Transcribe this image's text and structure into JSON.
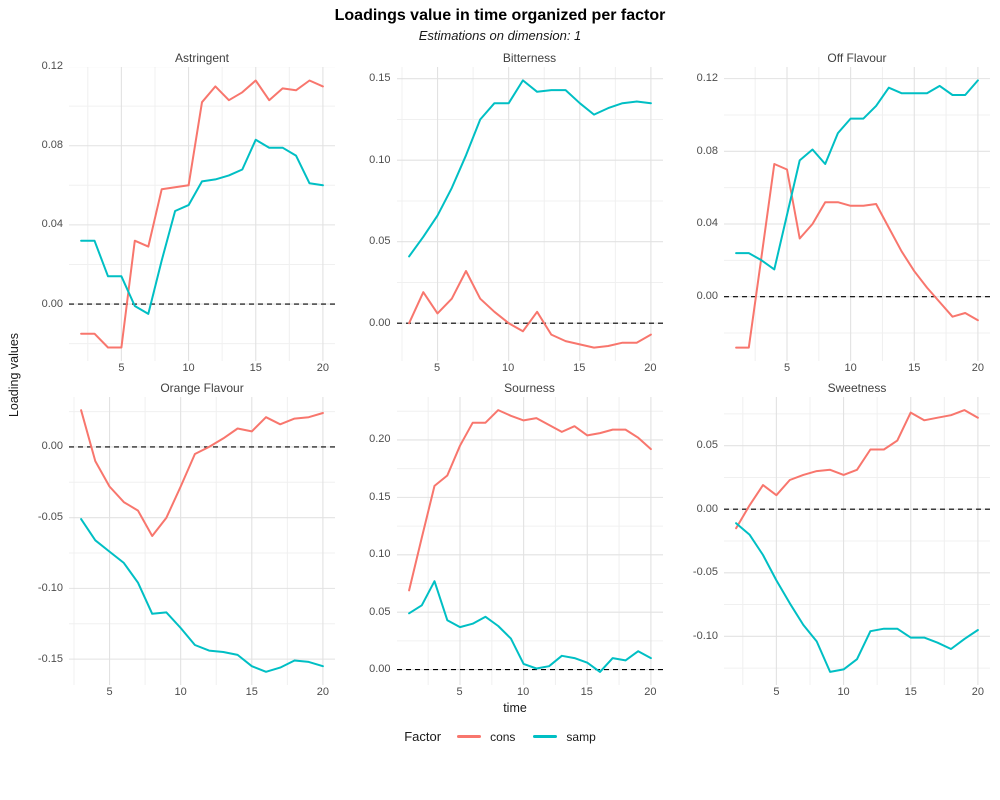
{
  "header": {
    "title": "Loadings value in time organized per factor",
    "subtitle": "Estimations on dimension: 1"
  },
  "axes": {
    "x_label": "time",
    "y_label": "Loading values"
  },
  "legend": {
    "title": "Factor",
    "items": [
      {
        "label": "cons",
        "color": "#F8766D"
      },
      {
        "label": "samp",
        "color": "#00BFC4"
      }
    ]
  },
  "style": {
    "cons_color": "#F8766D",
    "samp_color": "#00BFC4",
    "grid_major": "#E2E2E2",
    "grid_minor": "#F0F0F0",
    "zero_line_color": "#000000"
  },
  "chart_data": [
    {
      "type": "line",
      "title": "Astringent",
      "x": [
        2,
        3,
        4,
        5,
        6,
        7,
        8,
        9,
        10,
        11,
        12,
        13,
        14,
        15,
        16,
        17,
        18,
        19,
        20
      ],
      "series": [
        {
          "name": "cons",
          "values": [
            -0.015,
            -0.015,
            -0.022,
            -0.022,
            0.032,
            0.029,
            0.058,
            0.059,
            0.06,
            0.102,
            0.11,
            0.103,
            0.107,
            0.113,
            0.103,
            0.109,
            0.108,
            0.113,
            0.11
          ]
        },
        {
          "name": "samp",
          "values": [
            0.032,
            0.032,
            0.014,
            0.014,
            -0.001,
            -0.005,
            0.022,
            0.047,
            0.05,
            0.062,
            0.063,
            0.065,
            0.068,
            0.083,
            0.079,
            0.079,
            0.075,
            0.061,
            0.06
          ]
        }
      ],
      "yticks": [
        0.0,
        0.04,
        0.08,
        0.12
      ],
      "xticks": [
        5,
        10,
        15,
        20
      ],
      "xlim": [
        1.1,
        20.9
      ],
      "ylim": [
        -0.0288,
        0.1198
      ],
      "zero_line": true
    },
    {
      "type": "line",
      "title": "Bitterness",
      "x": [
        3,
        4,
        5,
        6,
        7,
        8,
        9,
        10,
        11,
        12,
        13,
        14,
        15,
        16,
        17,
        18,
        19,
        20
      ],
      "series": [
        {
          "name": "cons",
          "values": [
            0.0,
            0.019,
            0.006,
            0.015,
            0.032,
            0.015,
            0.007,
            0.0,
            -0.005,
            0.007,
            -0.007,
            -0.011,
            -0.013,
            -0.015,
            -0.014,
            -0.012,
            -0.012,
            -0.007
          ]
        },
        {
          "name": "samp",
          "values": [
            0.041,
            0.053,
            0.066,
            0.083,
            0.103,
            0.125,
            0.135,
            0.135,
            0.149,
            0.142,
            0.143,
            0.143,
            0.135,
            0.128,
            0.132,
            0.135,
            0.136,
            0.135
          ]
        }
      ],
      "yticks": [
        0.0,
        0.05,
        0.1,
        0.15
      ],
      "xticks": [
        5,
        10,
        15,
        20
      ],
      "xlim": [
        2.15,
        20.85
      ],
      "ylim": [
        -0.0232,
        0.1572
      ],
      "zero_line": true
    },
    {
      "type": "line",
      "title": "Off Flavour",
      "x": [
        1,
        2,
        3,
        4,
        5,
        6,
        7,
        8,
        9,
        10,
        11,
        12,
        13,
        14,
        15,
        16,
        17,
        18,
        19,
        20
      ],
      "series": [
        {
          "name": "cons",
          "values": [
            -0.028,
            -0.028,
            0.022,
            0.073,
            0.07,
            0.032,
            0.04,
            0.052,
            0.052,
            0.05,
            0.05,
            0.051,
            0.038,
            0.025,
            0.014,
            0.005,
            -0.003,
            -0.011,
            -0.009,
            -0.013
          ]
        },
        {
          "name": "samp",
          "values": [
            0.024,
            0.024,
            0.02,
            0.015,
            0.045,
            0.075,
            0.081,
            0.073,
            0.09,
            0.098,
            0.098,
            0.105,
            0.115,
            0.112,
            0.112,
            0.112,
            0.116,
            0.111,
            0.111,
            0.119
          ]
        }
      ],
      "yticks": [
        0.0,
        0.04,
        0.08,
        0.12
      ],
      "xticks": [
        5,
        10,
        15,
        20
      ],
      "xlim": [
        0.05,
        20.95
      ],
      "ylim": [
        -0.0354,
        0.1264
      ],
      "zero_line": true
    },
    {
      "type": "line",
      "title": "Orange Flavour",
      "x": [
        3,
        4,
        5,
        6,
        7,
        8,
        9,
        10,
        11,
        12,
        13,
        14,
        15,
        16,
        17,
        18,
        19,
        20
      ],
      "series": [
        {
          "name": "cons",
          "values": [
            0.026,
            -0.01,
            -0.028,
            -0.039,
            -0.045,
            -0.063,
            -0.05,
            -0.028,
            -0.005,
            0.0,
            0.006,
            0.013,
            0.011,
            0.021,
            0.016,
            0.02,
            0.021,
            0.024
          ]
        },
        {
          "name": "samp",
          "values": [
            -0.051,
            -0.066,
            -0.074,
            -0.082,
            -0.096,
            -0.118,
            -0.117,
            -0.128,
            -0.14,
            -0.144,
            -0.145,
            -0.147,
            -0.155,
            -0.159,
            -0.156,
            -0.151,
            -0.152,
            -0.155
          ]
        }
      ],
      "yticks": [
        0.0,
        -0.05,
        -0.1,
        -0.15
      ],
      "xticks": [
        5,
        10,
        15,
        20
      ],
      "xlim": [
        2.15,
        20.85
      ],
      "ylim": [
        -0.1683,
        0.0353
      ],
      "zero_line": true
    },
    {
      "type": "line",
      "title": "Sourness",
      "x": [
        1,
        2,
        3,
        4,
        5,
        6,
        7,
        8,
        9,
        10,
        11,
        12,
        13,
        14,
        15,
        16,
        17,
        18,
        19,
        20
      ],
      "series": [
        {
          "name": "cons",
          "values": [
            0.069,
            0.115,
            0.16,
            0.169,
            0.195,
            0.215,
            0.215,
            0.226,
            0.221,
            0.217,
            0.219,
            0.213,
            0.207,
            0.212,
            0.204,
            0.206,
            0.209,
            0.209,
            0.202,
            0.192
          ]
        },
        {
          "name": "samp",
          "values": [
            0.049,
            0.056,
            0.077,
            0.043,
            0.037,
            0.04,
            0.046,
            0.038,
            0.027,
            0.005,
            0.001,
            0.003,
            0.012,
            0.01,
            0.006,
            -0.002,
            0.01,
            0.008,
            0.016,
            0.01
          ]
        }
      ],
      "yticks": [
        0.0,
        0.05,
        0.1,
        0.15,
        0.2
      ],
      "xticks": [
        5,
        10,
        15,
        20
      ],
      "xlim": [
        0.05,
        20.95
      ],
      "ylim": [
        -0.0134,
        0.2374
      ],
      "zero_line": true
    },
    {
      "type": "line",
      "title": "Sweetness",
      "x": [
        2,
        3,
        4,
        5,
        6,
        7,
        8,
        9,
        10,
        11,
        12,
        13,
        14,
        15,
        16,
        17,
        18,
        19,
        20
      ],
      "series": [
        {
          "name": "cons",
          "values": [
            -0.015,
            0.003,
            0.019,
            0.011,
            0.023,
            0.027,
            0.03,
            0.031,
            0.027,
            0.031,
            0.047,
            0.047,
            0.054,
            0.076,
            0.07,
            0.072,
            0.074,
            0.078,
            0.072
          ]
        },
        {
          "name": "samp",
          "values": [
            -0.011,
            -0.02,
            -0.036,
            -0.056,
            -0.074,
            -0.091,
            -0.104,
            -0.128,
            -0.126,
            -0.118,
            -0.096,
            -0.094,
            -0.094,
            -0.101,
            -0.101,
            -0.105,
            -0.11,
            -0.102,
            -0.095
          ]
        }
      ],
      "yticks": [
        0.05,
        0.0,
        -0.05,
        -0.1
      ],
      "xticks": [
        5,
        10,
        15,
        20
      ],
      "xlim": [
        1.1,
        20.9
      ],
      "ylim": [
        -0.1383,
        0.0883
      ],
      "zero_line": true
    }
  ]
}
